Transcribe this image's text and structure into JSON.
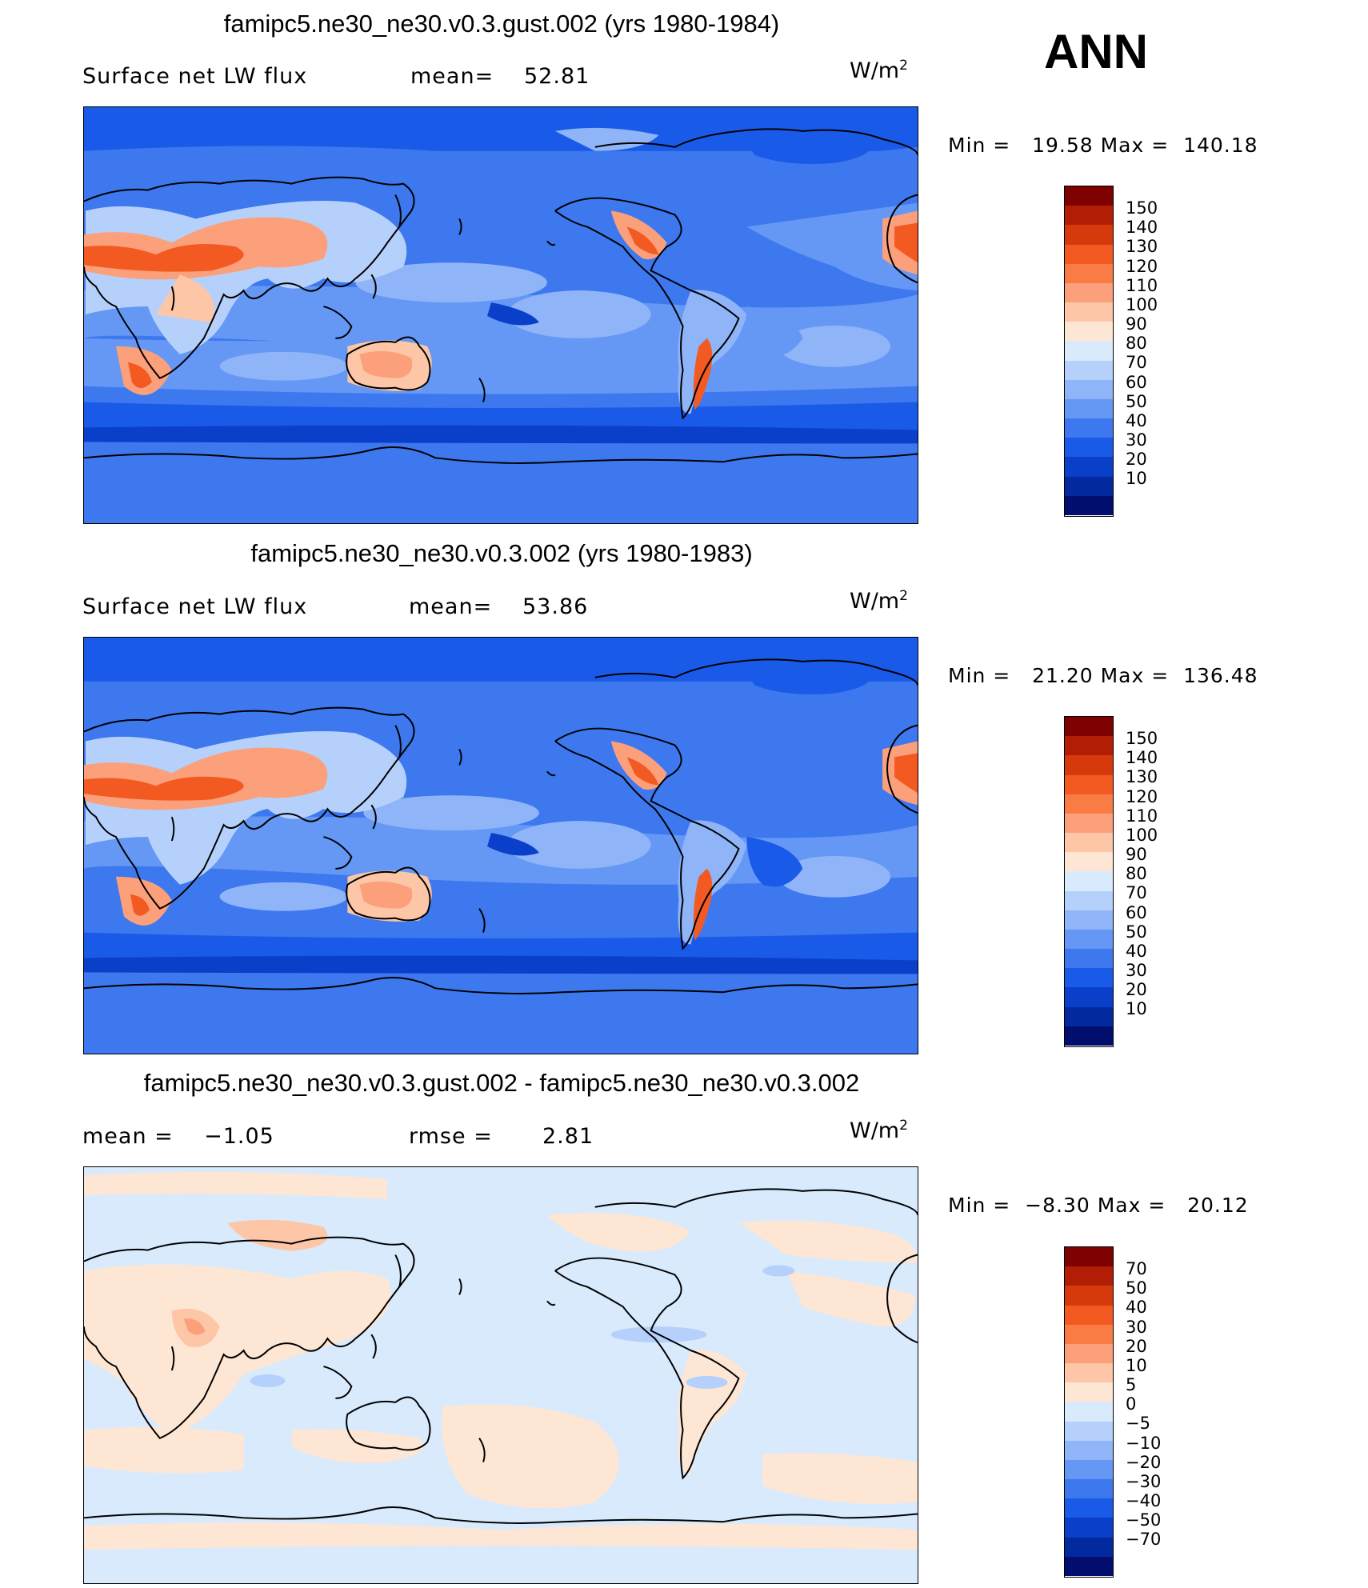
{
  "season_label": "ANN",
  "panels": [
    {
      "title": "famipc5.ne30_ne30.v0.3.gust.002 (yrs 1980-1984)",
      "left_label": "Surface net LW flux",
      "mid_label": "mean=",
      "mid_value": "52.81",
      "units": "W/m",
      "units_sup": "2",
      "minmax": "Min =   19.58 Max =  140.18",
      "colorbar": {
        "labels": [
          "150",
          "140",
          "130",
          "120",
          "110",
          "100",
          "90",
          "80",
          "70",
          "60",
          "50",
          "40",
          "30",
          "20",
          "10"
        ],
        "colors": [
          "#7f0000",
          "#b21e05",
          "#d63a0c",
          "#f25a22",
          "#f97c45",
          "#fba07b",
          "#fdc6a6",
          "#fee6d4",
          "#d9eafc",
          "#b5d1fb",
          "#8fb5f8",
          "#6598f4",
          "#3d78ef",
          "#1a5ae8",
          "#0a3fc9",
          "#03299f",
          "#020e6e"
        ]
      },
      "map_style": "absolute"
    },
    {
      "title": "famipc5.ne30_ne30.v0.3.002 (yrs 1980-1983)",
      "left_label": "Surface net LW flux",
      "mid_label": "mean=",
      "mid_value": "53.86",
      "units": "W/m",
      "units_sup": "2",
      "minmax": "Min =   21.20 Max =  136.48",
      "colorbar": {
        "labels": [
          "150",
          "140",
          "130",
          "120",
          "110",
          "100",
          "90",
          "80",
          "70",
          "60",
          "50",
          "40",
          "30",
          "20",
          "10"
        ],
        "colors": [
          "#7f0000",
          "#b21e05",
          "#d63a0c",
          "#f25a22",
          "#f97c45",
          "#fba07b",
          "#fdc6a6",
          "#fee6d4",
          "#d9eafc",
          "#b5d1fb",
          "#8fb5f8",
          "#6598f4",
          "#3d78ef",
          "#1a5ae8",
          "#0a3fc9",
          "#03299f",
          "#020e6e"
        ]
      },
      "map_style": "absolute"
    },
    {
      "title": "famipc5.ne30_ne30.v0.3.gust.002 - famipc5.ne30_ne30.v0.3.002",
      "left_label": "mean =    −1.05",
      "mid_label": "rmse =",
      "mid_value": "2.81",
      "units": "W/m",
      "units_sup": "2",
      "minmax": "Min =  −8.30 Max =   20.12",
      "colorbar": {
        "labels": [
          "70",
          "50",
          "40",
          "30",
          "20",
          "10",
          "5",
          "0",
          "−5",
          "−10",
          "−20",
          "−30",
          "−40",
          "−50",
          "−70"
        ],
        "colors": [
          "#7f0000",
          "#b21e05",
          "#d63a0c",
          "#f25a22",
          "#f97c45",
          "#fba07b",
          "#fdc6a6",
          "#fee6d4",
          "#d9eafc",
          "#b5d1fb",
          "#8fb5f8",
          "#6598f4",
          "#3d78ef",
          "#1a5ae8",
          "#0a3fc9",
          "#03299f",
          "#020e6e"
        ]
      },
      "map_style": "difference"
    }
  ]
}
